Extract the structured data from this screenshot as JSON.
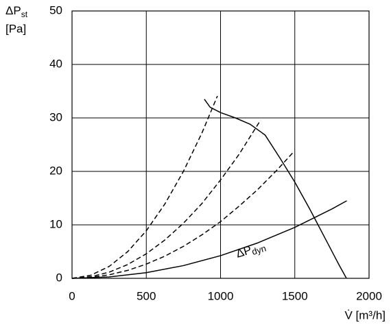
{
  "chart_data": {
    "type": "line",
    "y_label": {
      "main": "ΔP",
      "sub": "st",
      "unit": "[Pa]"
    },
    "x_label": "V̇ [m³/h]",
    "xlim": [
      0,
      2000
    ],
    "xticks": [
      0,
      500,
      1000,
      1500,
      2000
    ],
    "ylim": [
      0,
      50
    ],
    "yticks": [
      0,
      10,
      20,
      30,
      40,
      50
    ],
    "grid": true,
    "series": [
      {
        "color": "#000000",
        "style": "solid",
        "x": [
          891,
          930,
          1000,
          1100,
          1200,
          1300,
          1400,
          1500,
          1600,
          1700,
          1800,
          1848
        ],
        "values": [
          33.5,
          32,
          31,
          30,
          28.8,
          26.8,
          22.5,
          18,
          13,
          7.7,
          2.4,
          0
        ]
      },
      {
        "color": "#000000",
        "style": "solid",
        "x": [
          0,
          250,
          500,
          750,
          1000,
          1250,
          1500,
          1750,
          1850
        ],
        "values": [
          0,
          0.26,
          1.06,
          2.38,
          4.24,
          6.62,
          9.53,
          12.97,
          14.5
        ]
      },
      {
        "color": "#000000",
        "style": "dashed",
        "x": [
          0,
          125,
          250,
          375,
          500,
          625,
          750,
          875,
          979
        ],
        "values": [
          0,
          0.56,
          2.22,
          5.0,
          8.89,
          13.9,
          20.0,
          27.2,
          34.1
        ]
      },
      {
        "color": "#000000",
        "style": "dashed",
        "x": [
          0,
          125,
          250,
          375,
          500,
          625,
          750,
          875,
          1000,
          1125,
          1270
        ],
        "values": [
          0,
          0.29,
          1.15,
          2.58,
          4.59,
          7.17,
          10.3,
          14.0,
          18.4,
          23.2,
          29.6
        ]
      },
      {
        "color": "#000000",
        "style": "dashed",
        "x": [
          0,
          125,
          250,
          375,
          500,
          625,
          750,
          875,
          1000,
          1125,
          1250,
          1375,
          1487
        ],
        "values": [
          0,
          0.17,
          0.66,
          1.49,
          2.66,
          4.15,
          5.98,
          8.14,
          10.6,
          13.5,
          16.6,
          20.1,
          23.5
        ]
      }
    ],
    "annotation": {
      "main": "ΔP",
      "sub": "dyn"
    }
  }
}
